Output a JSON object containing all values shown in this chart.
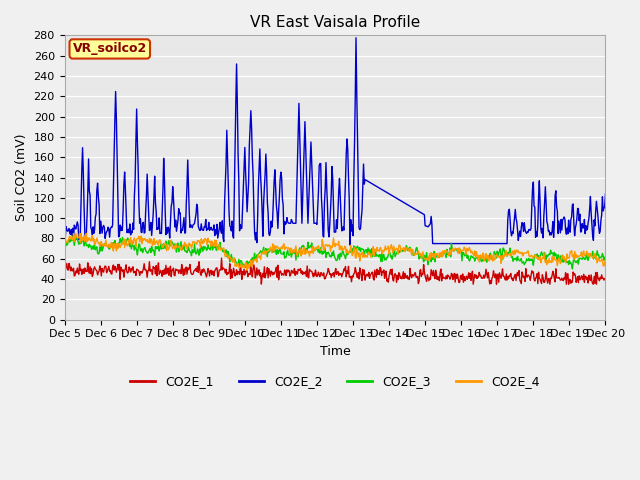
{
  "title": "VR East Vaisala Profile",
  "ylabel": "Soil CO2 (mV)",
  "xlabel": "Time",
  "ylim": [
    0,
    280
  ],
  "xlim": [
    0,
    360
  ],
  "x_tick_labels": [
    "Dec 5",
    "Dec 6",
    "Dec 7",
    "Dec 8",
    "Dec 9",
    "Dec 10",
    "Dec 11",
    "Dec 12",
    "Dec 13",
    "Dec 14",
    "Dec 15",
    "Dec 16",
    "Dec 17",
    "Dec 18",
    "Dec 19",
    "Dec 20"
  ],
  "x_tick_positions": [
    0,
    24,
    48,
    72,
    96,
    120,
    144,
    168,
    192,
    216,
    240,
    264,
    288,
    312,
    336,
    360
  ],
  "colors": {
    "CO2E_1": "#cc0000",
    "CO2E_2": "#0000cc",
    "CO2E_3": "#00cc00",
    "CO2E_4": "#ff9900"
  },
  "legend_box_label": "VR_soilco2",
  "legend_box_bg": "#ffff99",
  "legend_box_edge": "#cc3300",
  "fig_bg": "#f0f0f0",
  "plot_bg": "#e8e8e8",
  "title_fontsize": 11,
  "axis_fontsize": 9,
  "tick_fontsize": 8,
  "legend_fontsize": 9,
  "line_width": 1.0
}
